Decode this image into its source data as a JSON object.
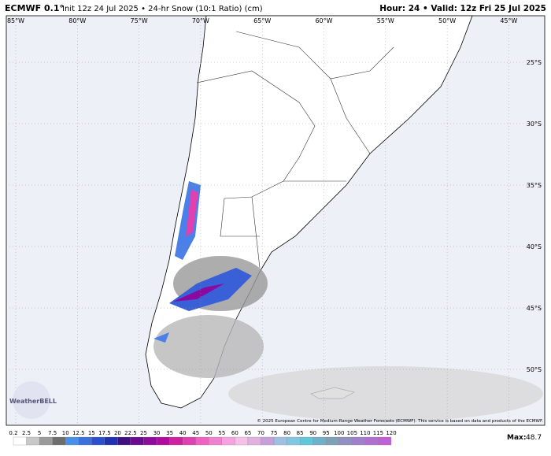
{
  "header": {
    "model": "ECMWF 0.1°",
    "info": "Init 12z 24 Jul 2025 • 24-hr Snow (10:1 Ratio) (cm)",
    "valid": "Hour: 24 • Valid: 12z Fri 25 Jul 2025"
  },
  "map": {
    "longitudes": [
      "85°W",
      "80°W",
      "75°W",
      "70°W",
      "65°W",
      "60°W",
      "55°W",
      "50°W",
      "45°W"
    ],
    "latitudes": [
      "25°S",
      "30°S",
      "35°S",
      "40°S",
      "45°S",
      "50°S"
    ],
    "credit": "© 2025 European Centre for Medium-Range Weather Forecasts (ECMWF). This service is based on data and products of the ECMWF.",
    "logo": "WeatherBELL"
  },
  "legend": {
    "labels": [
      "0.2",
      "2.5",
      "5",
      "7.5",
      "10",
      "12.5",
      "15",
      "17.5",
      "20",
      "22.5",
      "25",
      "30",
      "35",
      "40",
      "45",
      "50",
      "55",
      "60",
      "65",
      "70",
      "75",
      "80",
      "85",
      "90",
      "95",
      "100",
      "105",
      "110",
      "115",
      "120"
    ],
    "colors": [
      "#ffffff",
      "#c8c8c8",
      "#9a9a9a",
      "#6e6e6e",
      "#4a90e8",
      "#3a70e0",
      "#2a50d0",
      "#2030b0",
      "#401080",
      "#6a0a90",
      "#900aa0",
      "#b00aa0",
      "#d020a0",
      "#e040b0",
      "#f060c0",
      "#f080d0",
      "#f8a0e0",
      "#f8c0e8",
      "#e0b0e0",
      "#c8a0d8",
      "#a0c0e0",
      "#80c8e0",
      "#60c8d8",
      "#70b0c8",
      "#80a0b8",
      "#9090c0",
      "#a080c8",
      "#b070d0",
      "#c060d8"
    ],
    "max_label": "Max:",
    "max_value": "48.7"
  }
}
